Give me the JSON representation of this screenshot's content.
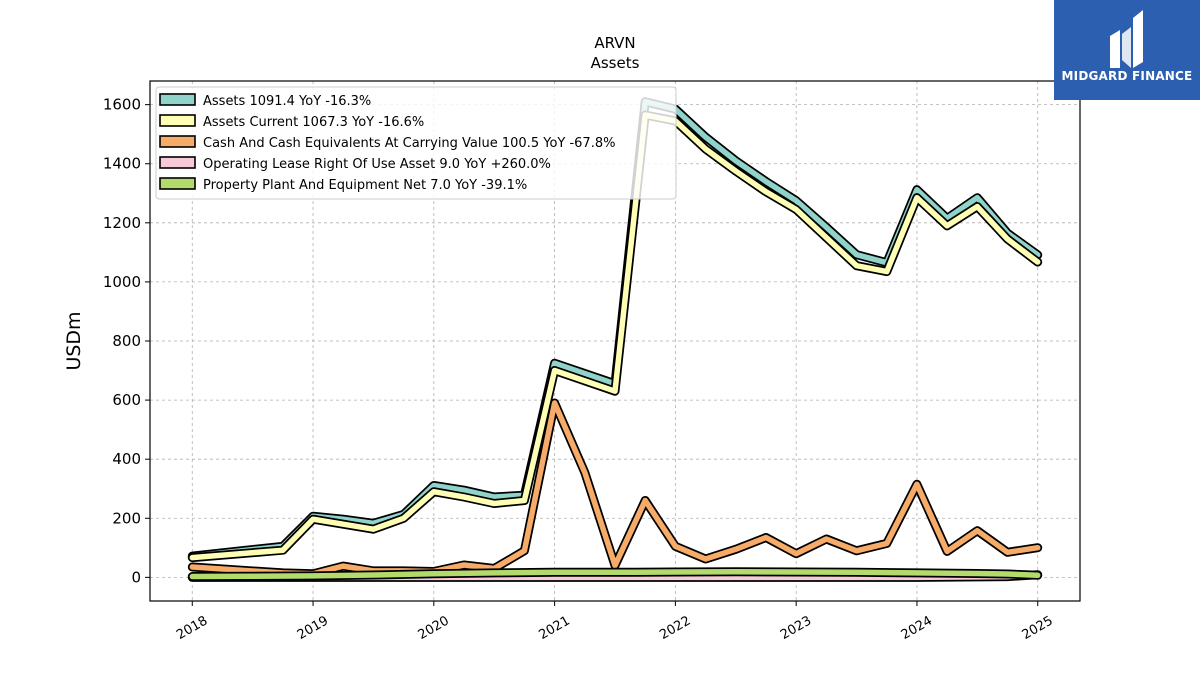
{
  "logo": {
    "text": "MIDGARD FINANCE",
    "icon": "midgard-m-logo-icon",
    "color": "#2d5fb0"
  },
  "chart_data": {
    "type": "line",
    "title": "ARVN",
    "subtitle": "Assets",
    "xlabel": "",
    "ylabel": "USDm",
    "ylim": [
      -80,
      1680
    ],
    "xlim": [
      2017.65,
      2025.35
    ],
    "x_ticks": [
      2018,
      2019,
      2020,
      2021,
      2022,
      2023,
      2024,
      2025
    ],
    "x_tick_labels": [
      "2018",
      "2019",
      "2020",
      "2021",
      "2022",
      "2023",
      "2024",
      "2025"
    ],
    "y_ticks": [
      0,
      200,
      400,
      600,
      800,
      1000,
      1200,
      1400,
      1600
    ],
    "y_tick_labels": [
      "0",
      "200",
      "400",
      "600",
      "800",
      "1000",
      "1200",
      "1400",
      "1600"
    ],
    "grid": true,
    "legend_position": "top-left",
    "series": [
      {
        "name": "Assets  1091.4 YoY -16.3%",
        "color": "#8fd3cb",
        "points": [
          [
            2018.0,
            72
          ],
          [
            2018.75,
            105
          ],
          [
            2019.0,
            207
          ],
          [
            2019.25,
            197
          ],
          [
            2019.5,
            183
          ],
          [
            2019.75,
            213
          ],
          [
            2020.0,
            311
          ],
          [
            2020.25,
            295
          ],
          [
            2020.5,
            272
          ],
          [
            2020.75,
            278
          ],
          [
            2021.0,
            725
          ],
          [
            2021.5,
            655
          ],
          [
            2021.75,
            1610
          ],
          [
            2022.0,
            1585
          ],
          [
            2022.25,
            1490
          ],
          [
            2022.5,
            1410
          ],
          [
            2022.75,
            1340
          ],
          [
            2023.0,
            1275
          ],
          [
            2023.25,
            1185
          ],
          [
            2023.5,
            1092
          ],
          [
            2023.75,
            1065
          ],
          [
            2024.0,
            1312
          ],
          [
            2024.25,
            1215
          ],
          [
            2024.5,
            1285
          ],
          [
            2024.75,
            1165
          ],
          [
            2025.0,
            1091.4
          ]
        ]
      },
      {
        "name": "Assets Current  1067.3 YoY -16.6%",
        "color": "#fefeb4",
        "points": [
          [
            2018.0,
            67
          ],
          [
            2018.75,
            92
          ],
          [
            2019.0,
            197
          ],
          [
            2019.25,
            180
          ],
          [
            2019.5,
            163
          ],
          [
            2019.75,
            200
          ],
          [
            2020.0,
            290
          ],
          [
            2020.25,
            272
          ],
          [
            2020.5,
            250
          ],
          [
            2020.75,
            260
          ],
          [
            2021.0,
            700
          ],
          [
            2021.5,
            630
          ],
          [
            2021.75,
            1565
          ],
          [
            2022.0,
            1545
          ],
          [
            2022.25,
            1450
          ],
          [
            2022.5,
            1375
          ],
          [
            2022.75,
            1305
          ],
          [
            2023.0,
            1245
          ],
          [
            2023.25,
            1150
          ],
          [
            2023.5,
            1055
          ],
          [
            2023.75,
            1035
          ],
          [
            2024.0,
            1285
          ],
          [
            2024.25,
            1190
          ],
          [
            2024.5,
            1255
          ],
          [
            2024.75,
            1145
          ],
          [
            2025.0,
            1067.3
          ]
        ]
      },
      {
        "name": "Cash And Cash Equivalents At Carrying Value  100.5 YoY -67.8%",
        "color": "#f6ab68",
        "points": [
          [
            2018.0,
            35
          ],
          [
            2018.75,
            15
          ],
          [
            2019.0,
            12
          ],
          [
            2019.25,
            38
          ],
          [
            2019.5,
            22
          ],
          [
            2019.75,
            22
          ],
          [
            2020.0,
            20
          ],
          [
            2020.25,
            42
          ],
          [
            2020.5,
            30
          ],
          [
            2020.75,
            90
          ],
          [
            2021.0,
            590
          ],
          [
            2021.25,
            355
          ],
          [
            2021.5,
            40
          ],
          [
            2021.75,
            260
          ],
          [
            2022.0,
            105
          ],
          [
            2022.25,
            62
          ],
          [
            2022.5,
            95
          ],
          [
            2022.75,
            135
          ],
          [
            2023.0,
            80
          ],
          [
            2023.25,
            130
          ],
          [
            2023.5,
            90
          ],
          [
            2023.75,
            115
          ],
          [
            2024.0,
            315
          ],
          [
            2024.25,
            88
          ],
          [
            2024.5,
            158
          ],
          [
            2024.75,
            85
          ],
          [
            2025.0,
            100.5
          ]
        ]
      },
      {
        "name": "Operating Lease Right Of Use Asset  9.0 YoY +260.0%",
        "color": "#f8c9d8",
        "points": [
          [
            2018.0,
            0
          ],
          [
            2019.0,
            0
          ],
          [
            2020.0,
            0
          ],
          [
            2021.0,
            0
          ],
          [
            2022.0,
            0
          ],
          [
            2023.0,
            0
          ],
          [
            2024.0,
            0
          ],
          [
            2024.75,
            2.5
          ],
          [
            2025.0,
            9.0
          ]
        ]
      },
      {
        "name": "Property Plant And Equipment Net  7.0 YoY -39.1%",
        "color": "#b2db6c",
        "points": [
          [
            2018.0,
            3
          ],
          [
            2018.5,
            4
          ],
          [
            2019.0,
            5
          ],
          [
            2019.5,
            8
          ],
          [
            2020.0,
            12
          ],
          [
            2020.5,
            15
          ],
          [
            2021.0,
            17
          ],
          [
            2021.5,
            17
          ],
          [
            2022.0,
            18
          ],
          [
            2022.5,
            19
          ],
          [
            2023.0,
            18
          ],
          [
            2023.5,
            17
          ],
          [
            2024.0,
            15
          ],
          [
            2024.5,
            13
          ],
          [
            2024.75,
            11.5
          ],
          [
            2025.0,
            7.0
          ]
        ]
      }
    ]
  }
}
